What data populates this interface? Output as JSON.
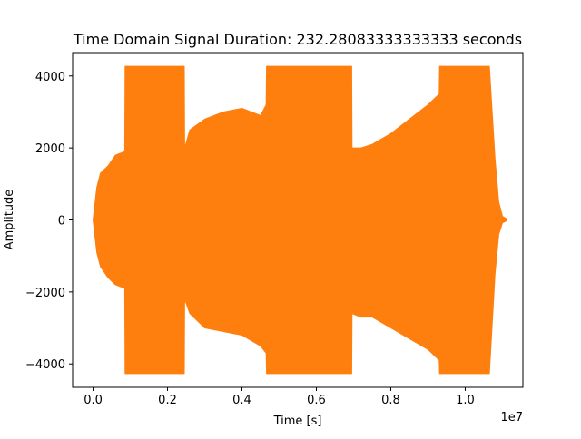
{
  "chart_data": {
    "type": "line",
    "title": "Time Domain Signal Duration: 232.28083333333333 seconds",
    "xlabel": "Time [s]",
    "ylabel": "Amplitude",
    "x_offset_label": "1e7",
    "xlim": [
      -0.055,
      1.155
    ],
    "ylim": [
      -4650,
      4650
    ],
    "x_ticks": [
      0.0,
      0.2,
      0.4,
      0.6,
      0.8,
      1.0
    ],
    "x_tick_labels": [
      "0.0",
      "0.2",
      "0.4",
      "0.6",
      "0.8",
      "1.0"
    ],
    "y_ticks": [
      -4000,
      -2000,
      0,
      2000,
      4000
    ],
    "y_tick_labels": [
      "−4000",
      "−2000",
      "0",
      "2000",
      "4000"
    ],
    "grid": false,
    "series": [
      {
        "color": "#ff7f0e",
        "x": [
          0.0,
          0.01,
          0.02,
          0.04,
          0.06,
          0.085,
          0.086,
          0.1,
          0.15,
          0.2,
          0.245,
          0.246,
          0.26,
          0.3,
          0.35,
          0.4,
          0.45,
          0.465,
          0.466,
          0.5,
          0.55,
          0.6,
          0.65,
          0.695,
          0.696,
          0.72,
          0.75,
          0.8,
          0.85,
          0.9,
          0.93,
          0.931,
          0.95,
          1.0,
          1.05,
          1.065,
          1.08,
          1.09,
          1.1,
          1.11
        ],
        "upper": [
          0,
          900,
          1300,
          1500,
          1800,
          1900,
          4270,
          4270,
          4270,
          4270,
          4270,
          2000,
          2500,
          2800,
          3000,
          3100,
          2900,
          3200,
          4270,
          4270,
          4270,
          4270,
          4270,
          4270,
          2000,
          2000,
          2100,
          2400,
          2800,
          3200,
          3500,
          4270,
          4270,
          4270,
          4270,
          4270,
          1700,
          500,
          100,
          40
        ],
        "lower": [
          0,
          -900,
          -1300,
          -1600,
          -1800,
          -1900,
          -4270,
          -4270,
          -4270,
          -4270,
          -4270,
          -2200,
          -2600,
          -3000,
          -3100,
          -3200,
          -3500,
          -3700,
          -4270,
          -4270,
          -4270,
          -4270,
          -4270,
          -4270,
          -2600,
          -2700,
          -2700,
          -3000,
          -3300,
          -3600,
          -3900,
          -4270,
          -4270,
          -4270,
          -4270,
          -4270,
          -1500,
          -400,
          -80,
          -30
        ]
      }
    ]
  }
}
